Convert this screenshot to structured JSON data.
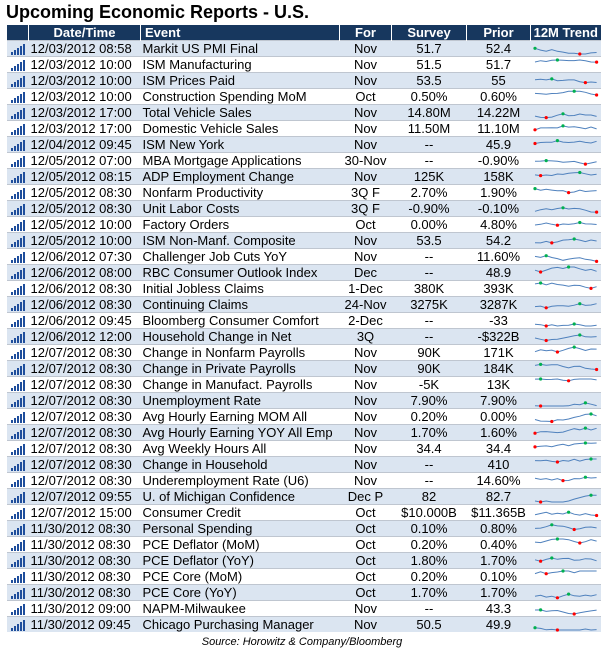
{
  "title": "Upcoming Economic Reports - U.S.",
  "columns": [
    "Date/Time",
    "Event",
    "For",
    "Survey",
    "Prior",
    "12M Trend"
  ],
  "source": "Source: Horowitz & Company/Bloomberg",
  "colors": {
    "header": "#17375e",
    "stripe": "#dbe5f1",
    "trend_line": "#4f81bd",
    "high_marker": "#00b050",
    "low_marker": "#ff0000"
  },
  "row_icon": "bar-chart-icon",
  "rows": [
    {
      "datetime": "12/03/2012 08:58",
      "event": "Markit US PMI Final",
      "for": "Nov",
      "survey": "51.7",
      "prior": "52.4"
    },
    {
      "datetime": "12/03/2012 10:00",
      "event": "ISM Manufacturing",
      "for": "Nov",
      "survey": "51.5",
      "prior": "51.7"
    },
    {
      "datetime": "12/03/2012 10:00",
      "event": "ISM Prices Paid",
      "for": "Nov",
      "survey": "53.5",
      "prior": "55"
    },
    {
      "datetime": "12/03/2012 10:00",
      "event": "Construction Spending MoM",
      "for": "Oct",
      "survey": "0.50%",
      "prior": "0.60%"
    },
    {
      "datetime": "12/03/2012 17:00",
      "event": "Total Vehicle Sales",
      "for": "Nov",
      "survey": "14.80M",
      "prior": "14.22M"
    },
    {
      "datetime": "12/03/2012 17:00",
      "event": "Domestic Vehicle Sales",
      "for": "Nov",
      "survey": "11.50M",
      "prior": "11.10M"
    },
    {
      "datetime": "12/04/2012 09:45",
      "event": "ISM New York",
      "for": "Nov",
      "survey": "--",
      "prior": "45.9"
    },
    {
      "datetime": "12/05/2012 07:00",
      "event": "MBA Mortgage Applications",
      "for": "30-Nov",
      "survey": "--",
      "prior": "-0.90%"
    },
    {
      "datetime": "12/05/2012 08:15",
      "event": "ADP Employment Change",
      "for": "Nov",
      "survey": "125K",
      "prior": "158K"
    },
    {
      "datetime": "12/05/2012 08:30",
      "event": "Nonfarm Productivity",
      "for": "3Q F",
      "survey": "2.70%",
      "prior": "1.90%"
    },
    {
      "datetime": "12/05/2012 08:30",
      "event": "Unit Labor Costs",
      "for": "3Q F",
      "survey": "-0.90%",
      "prior": "-0.10%"
    },
    {
      "datetime": "12/05/2012 10:00",
      "event": "Factory Orders",
      "for": "Oct",
      "survey": "0.00%",
      "prior": "4.80%"
    },
    {
      "datetime": "12/05/2012 10:00",
      "event": "ISM Non-Manf. Composite",
      "for": "Nov",
      "survey": "53.5",
      "prior": "54.2"
    },
    {
      "datetime": "12/06/2012 07:30",
      "event": "Challenger Job Cuts YoY",
      "for": "Nov",
      "survey": "--",
      "prior": "11.60%"
    },
    {
      "datetime": "12/06/2012 08:00",
      "event": "RBC Consumer Outlook Index",
      "for": "Dec",
      "survey": "--",
      "prior": "48.9"
    },
    {
      "datetime": "12/06/2012 08:30",
      "event": "Initial Jobless Claims",
      "for": "1-Dec",
      "survey": "380K",
      "prior": "393K"
    },
    {
      "datetime": "12/06/2012 08:30",
      "event": "Continuing Claims",
      "for": "24-Nov",
      "survey": "3275K",
      "prior": "3287K"
    },
    {
      "datetime": "12/06/2012 09:45",
      "event": "Bloomberg Consumer Comfort",
      "for": "2-Dec",
      "survey": "--",
      "prior": "-33"
    },
    {
      "datetime": "12/06/2012 12:00",
      "event": "Household Change in Net",
      "for": "3Q",
      "survey": "--",
      "prior": "-$322B"
    },
    {
      "datetime": "12/07/2012 08:30",
      "event": "Change in Nonfarm Payrolls",
      "for": "Nov",
      "survey": "90K",
      "prior": "171K"
    },
    {
      "datetime": "12/07/2012 08:30",
      "event": "Change in Private Payrolls",
      "for": "Nov",
      "survey": "90K",
      "prior": "184K"
    },
    {
      "datetime": "12/07/2012 08:30",
      "event": "Change in Manufact. Payrolls",
      "for": "Nov",
      "survey": "-5K",
      "prior": "13K"
    },
    {
      "datetime": "12/07/2012 08:30",
      "event": "Unemployment Rate",
      "for": "Nov",
      "survey": "7.90%",
      "prior": "7.90%"
    },
    {
      "datetime": "12/07/2012 08:30",
      "event": "Avg Hourly Earning MOM All",
      "for": "Nov",
      "survey": "0.20%",
      "prior": "0.00%"
    },
    {
      "datetime": "12/07/2012 08:30",
      "event": "Avg Hourly Earning YOY All Emp",
      "for": "Nov",
      "survey": "1.70%",
      "prior": "1.60%"
    },
    {
      "datetime": "12/07/2012 08:30",
      "event": "Avg Weekly Hours All",
      "for": "Nov",
      "survey": "34.4",
      "prior": "34.4"
    },
    {
      "datetime": "12/07/2012 08:30",
      "event": "Change in Household",
      "for": "Nov",
      "survey": "--",
      "prior": "410"
    },
    {
      "datetime": "12/07/2012 08:30",
      "event": "Underemployment Rate (U6)",
      "for": "Nov",
      "survey": "--",
      "prior": "14.60%"
    },
    {
      "datetime": "12/07/2012 09:55",
      "event": "U. of Michigan Confidence",
      "for": "Dec P",
      "survey": "82",
      "prior": "82.7"
    },
    {
      "datetime": "12/07/2012 15:00",
      "event": "Consumer Credit",
      "for": "Oct",
      "survey": "$10.000B",
      "prior": "$11.365B"
    },
    {
      "datetime": "11/30/2012 08:30",
      "event": "Personal Spending",
      "for": "Oct",
      "survey": "0.10%",
      "prior": "0.80%"
    },
    {
      "datetime": "11/30/2012 08:30",
      "event": "PCE Deflator (MoM)",
      "for": "Oct",
      "survey": "0.20%",
      "prior": "0.40%"
    },
    {
      "datetime": "11/30/2012 08:30",
      "event": "PCE Deflator (YoY)",
      "for": "Oct",
      "survey": "1.80%",
      "prior": "1.70%"
    },
    {
      "datetime": "11/30/2012 08:30",
      "event": "PCE Core (MoM)",
      "for": "Oct",
      "survey": "0.20%",
      "prior": "0.10%"
    },
    {
      "datetime": "11/30/2012 08:30",
      "event": "PCE Core (YoY)",
      "for": "Oct",
      "survey": "1.70%",
      "prior": "1.70%"
    },
    {
      "datetime": "11/30/2012 09:00",
      "event": "NAPM-Milwaukee",
      "for": "Nov",
      "survey": "--",
      "prior": "43.3"
    },
    {
      "datetime": "11/30/2012 09:45",
      "event": "Chicago Purchasing Manager",
      "for": "Nov",
      "survey": "50.5",
      "prior": "49.9"
    }
  ]
}
